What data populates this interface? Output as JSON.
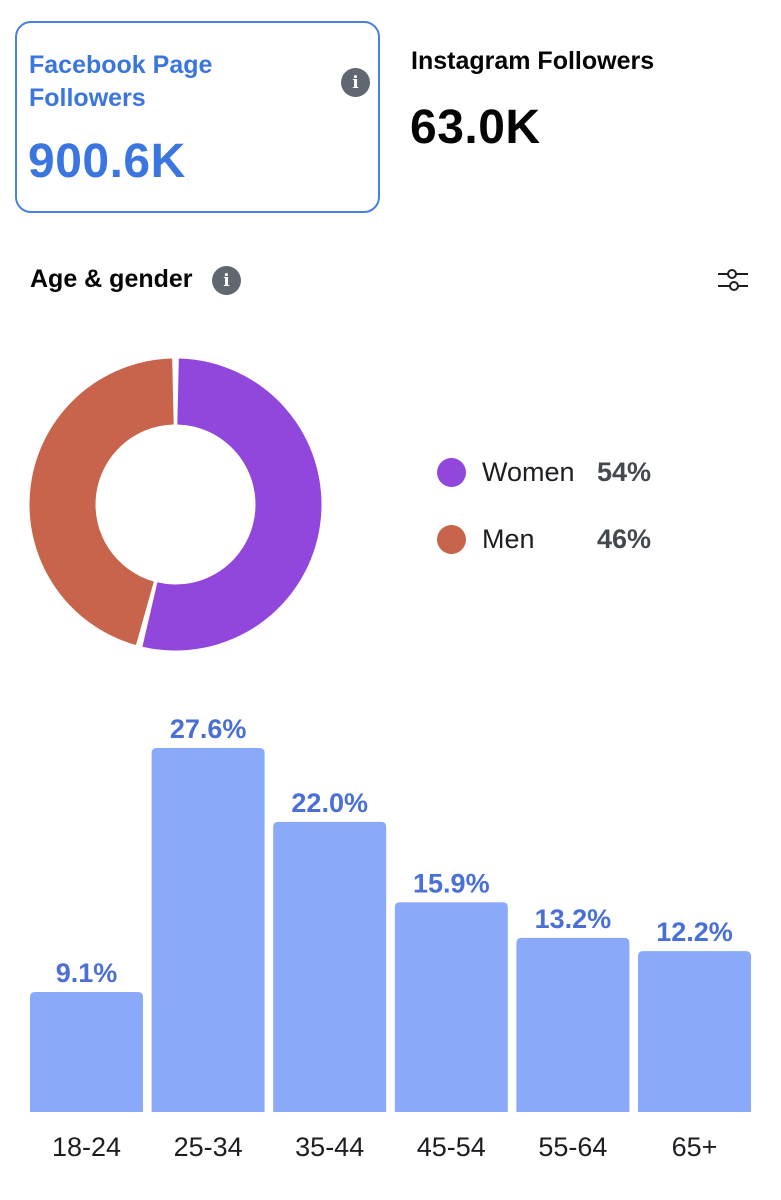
{
  "facebook_card": {
    "title": "Facebook Page Followers",
    "value": "900.6K",
    "info_icon": "info-icon"
  },
  "instagram_card": {
    "title": "Instagram Followers",
    "value": "63.0K"
  },
  "age_gender": {
    "title": "Age & gender",
    "info_icon": "info-icon",
    "filter_icon": "sliders-icon",
    "gender": [
      {
        "label": "Women",
        "pct_label": "54%",
        "value": 54,
        "color": "#9146dc"
      },
      {
        "label": "Men",
        "pct_label": "46%",
        "value": 46,
        "color": "#c8644b"
      }
    ]
  },
  "chart_data": [
    {
      "type": "pie",
      "labels": [
        "Women",
        "Men"
      ],
      "values": [
        54,
        46
      ],
      "colors": [
        "#9146dc",
        "#c8644b"
      ],
      "title": ""
    },
    {
      "type": "bar",
      "categories": [
        "18-24",
        "25-34",
        "35-44",
        "45-54",
        "55-64",
        "65+"
      ],
      "values": [
        9.1,
        27.6,
        22.0,
        15.9,
        13.2,
        12.2
      ],
      "value_labels": [
        "9.1%",
        "27.6%",
        "22.0%",
        "15.9%",
        "13.2%",
        "12.2%"
      ],
      "bar_color": "#8aa9f8",
      "label_color": "#4a6fd6",
      "title": "",
      "xlabel": "",
      "ylabel": "",
      "ylim": [
        0,
        27.6
      ],
      "grid": false
    }
  ]
}
